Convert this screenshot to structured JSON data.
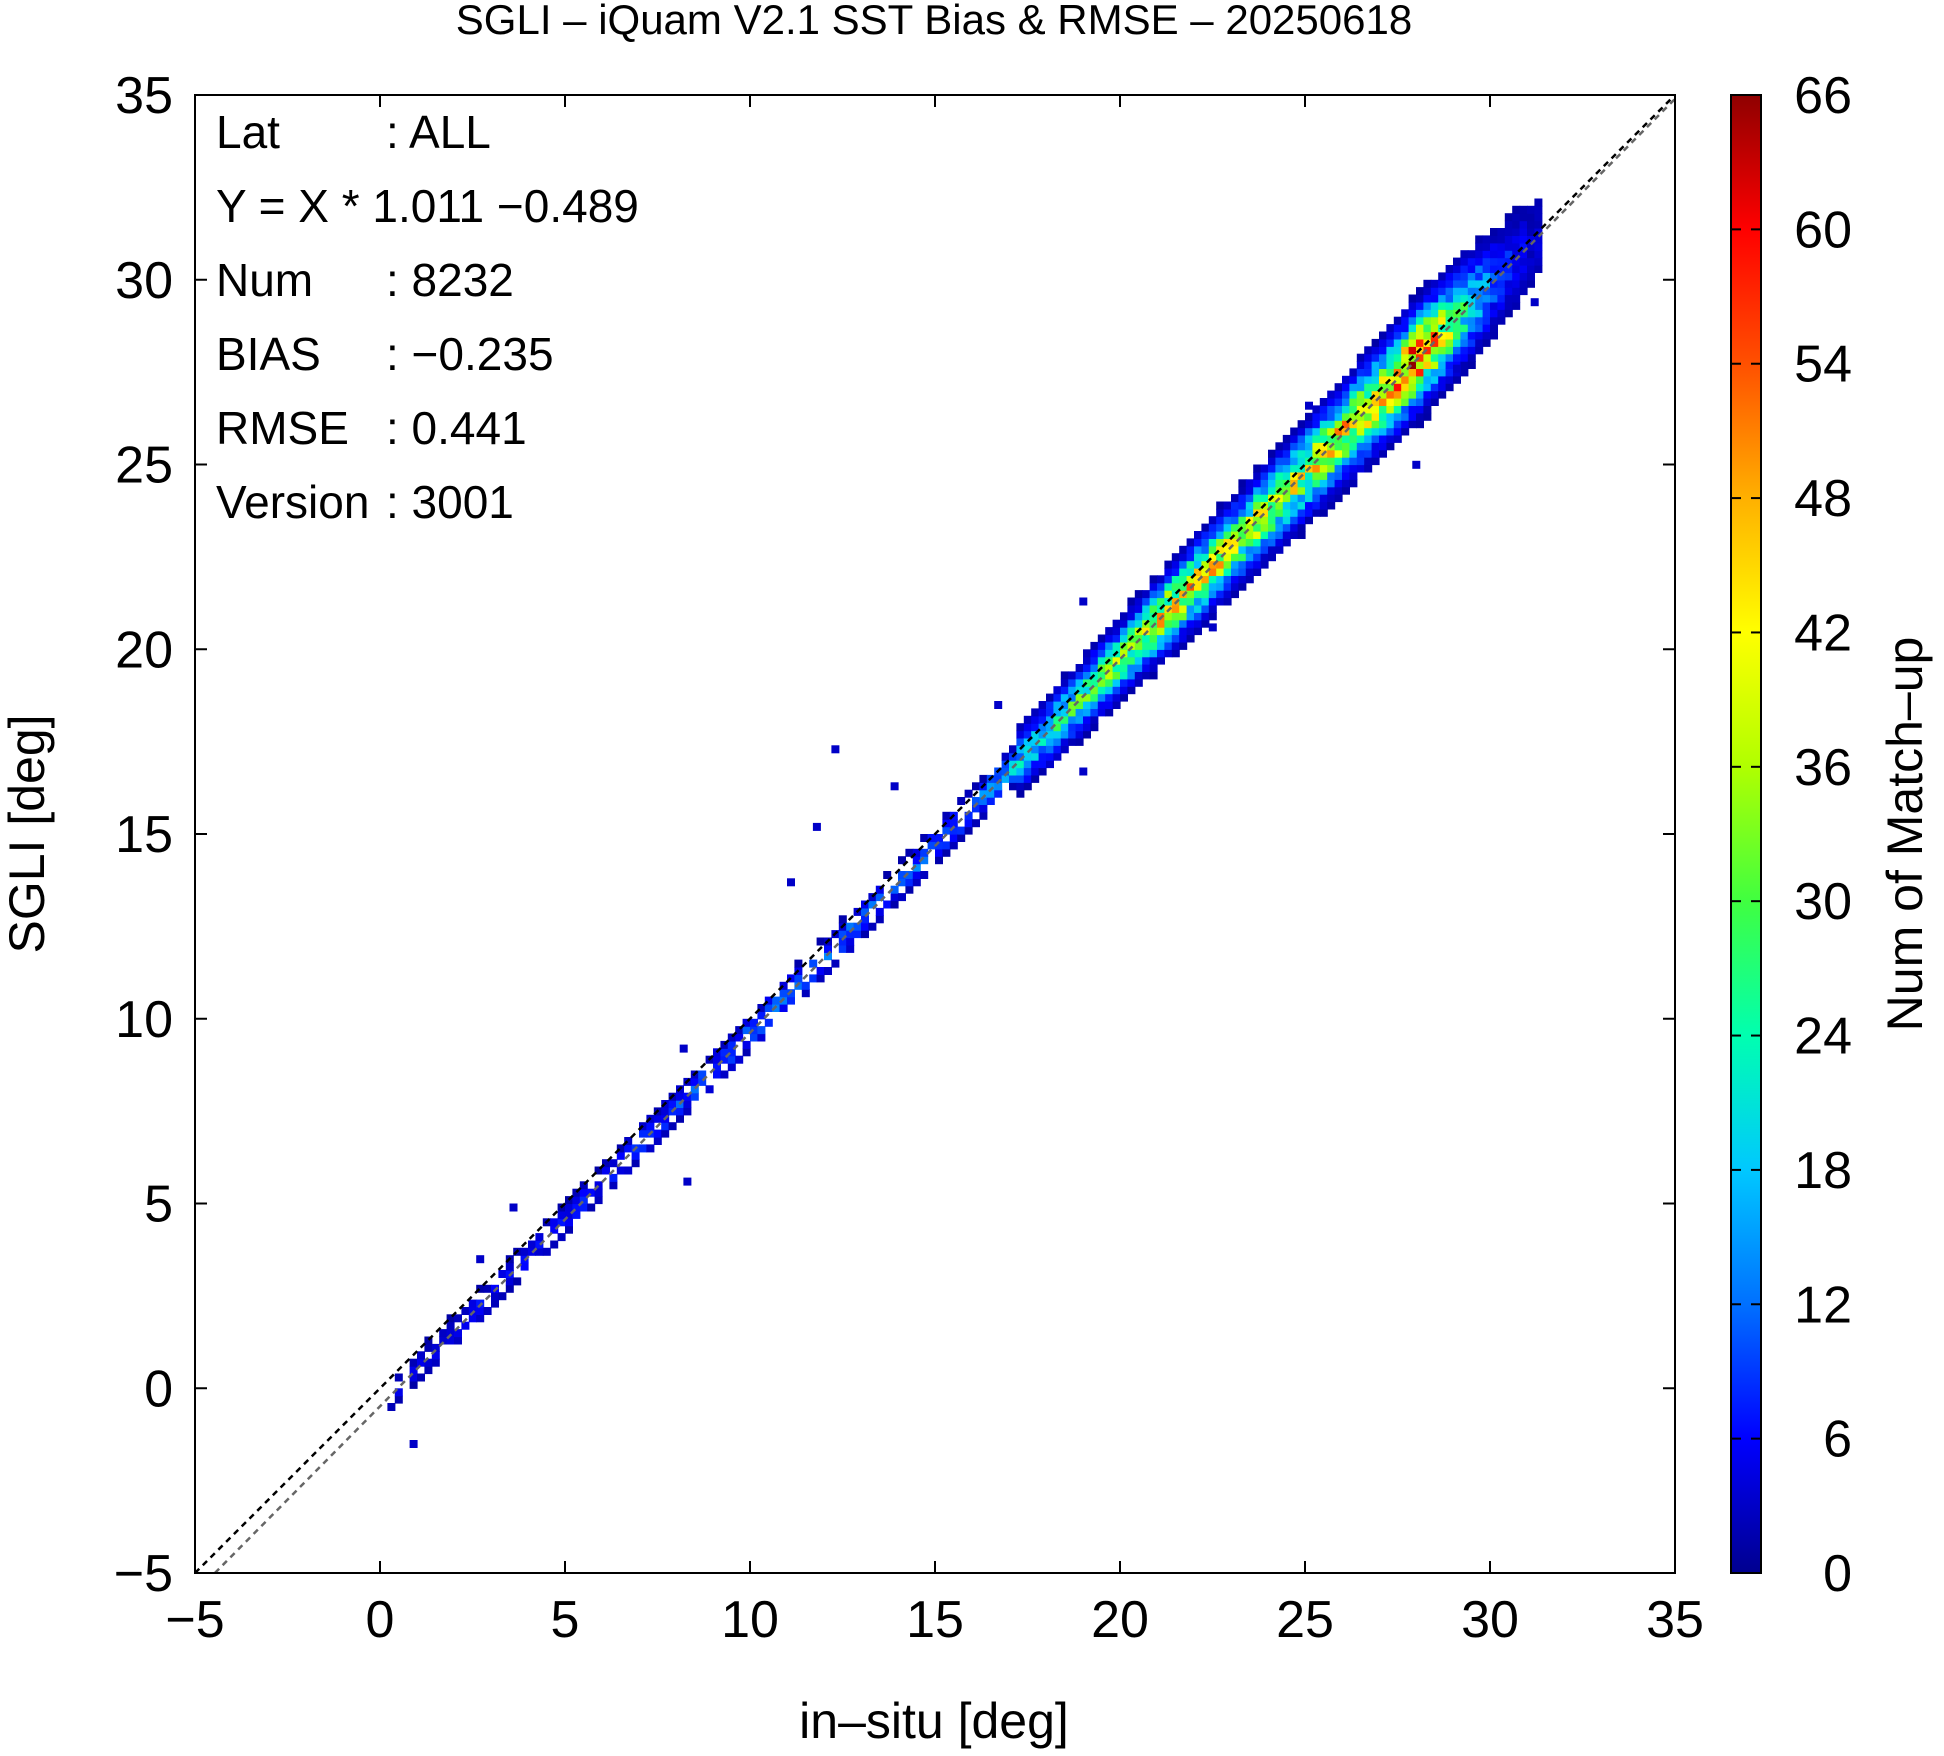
{
  "chart_data": {
    "type": "heatmap",
    "title": "SGLI – iQuam V2.1 SST Bias & RMSE  – 20250618",
    "xlabel": "in–situ [deg]",
    "ylabel": "SGLI [deg]",
    "xlim": [
      -5,
      35
    ],
    "ylim": [
      -5,
      35
    ],
    "x_ticks": [
      "−5",
      "0",
      "5",
      "10",
      "15",
      "20",
      "25",
      "30",
      "35"
    ],
    "y_ticks": [
      "−5",
      "0",
      "5",
      "10",
      "15",
      "20",
      "25",
      "30",
      "35"
    ],
    "colorbar": {
      "label": "Num of Match–up",
      "range": [
        0,
        66
      ],
      "ticks": [
        "0",
        "6",
        "12",
        "18",
        "24",
        "30",
        "36",
        "42",
        "48",
        "54",
        "60",
        "66"
      ],
      "colors": [
        "#00008f",
        "#0000ff",
        "#0070ff",
        "#00c8ff",
        "#00ffb0",
        "#40ff40",
        "#b0ff00",
        "#ffff00",
        "#ffb000",
        "#ff5000",
        "#ff0000",
        "#8f0000"
      ]
    },
    "stats": [
      {
        "key": "Lat",
        "value": ": ALL"
      },
      {
        "key": "Y = X * 1.011 −0.489",
        "value": ""
      },
      {
        "key": "Num",
        "value": ": 8232"
      },
      {
        "key": "BIAS",
        "value": ": −0.235"
      },
      {
        "key": "RMSE",
        "value": ": 0.441"
      },
      {
        "key": "Version",
        "value": ": 3001"
      }
    ],
    "reference_lines": [
      {
        "slope": 1.0,
        "intercept": 0.0,
        "color": "#000000",
        "style": "dashed"
      },
      {
        "slope": 1.011,
        "intercept": -0.489,
        "color": "#666666",
        "style": "dashed"
      }
    ],
    "cell_size": 0.2,
    "density_along_diagonal": [
      {
        "x": 0,
        "count": 4
      },
      {
        "x": 2,
        "count": 6
      },
      {
        "x": 4,
        "count": 6
      },
      {
        "x": 6,
        "count": 8
      },
      {
        "x": 8,
        "count": 10
      },
      {
        "x": 10,
        "count": 12
      },
      {
        "x": 12,
        "count": 12
      },
      {
        "x": 14,
        "count": 12
      },
      {
        "x": 16,
        "count": 14
      },
      {
        "x": 18,
        "count": 24
      },
      {
        "x": 20,
        "count": 34
      },
      {
        "x": 21.5,
        "count": 48
      },
      {
        "x": 23,
        "count": 40
      },
      {
        "x": 25,
        "count": 42
      },
      {
        "x": 27,
        "count": 50
      },
      {
        "x": 28,
        "count": 62
      },
      {
        "x": 29,
        "count": 30
      },
      {
        "x": 30,
        "count": 12
      },
      {
        "x": 31,
        "count": 4
      }
    ],
    "scatter_extent": [
      0.2,
      31.3
    ],
    "outliers": [
      {
        "x": 0.8,
        "y": -1.6,
        "count": 3
      },
      {
        "x": 12.2,
        "y": 17.2,
        "count": 3
      },
      {
        "x": 11.7,
        "y": 15.1,
        "count": 3
      },
      {
        "x": 11.0,
        "y": 13.6,
        "count": 3
      },
      {
        "x": 8.1,
        "y": 9.1,
        "count": 3
      },
      {
        "x": 8.2,
        "y": 5.5,
        "count": 3
      },
      {
        "x": 3.5,
        "y": 4.8,
        "count": 3
      },
      {
        "x": 2.6,
        "y": 3.4,
        "count": 3
      },
      {
        "x": 13.8,
        "y": 16.2,
        "count": 3
      },
      {
        "x": 16.6,
        "y": 18.4,
        "count": 3
      },
      {
        "x": 18.9,
        "y": 16.6,
        "count": 3
      },
      {
        "x": 18.9,
        "y": 21.2,
        "count": 3
      },
      {
        "x": 22.4,
        "y": 20.5,
        "count": 3
      },
      {
        "x": 27.9,
        "y": 24.9,
        "count": 3
      },
      {
        "x": 29.0,
        "y": 27.5,
        "count": 3
      },
      {
        "x": 25.0,
        "y": 26.5,
        "count": 3
      },
      {
        "x": 31.1,
        "y": 29.3,
        "count": 3
      }
    ]
  }
}
